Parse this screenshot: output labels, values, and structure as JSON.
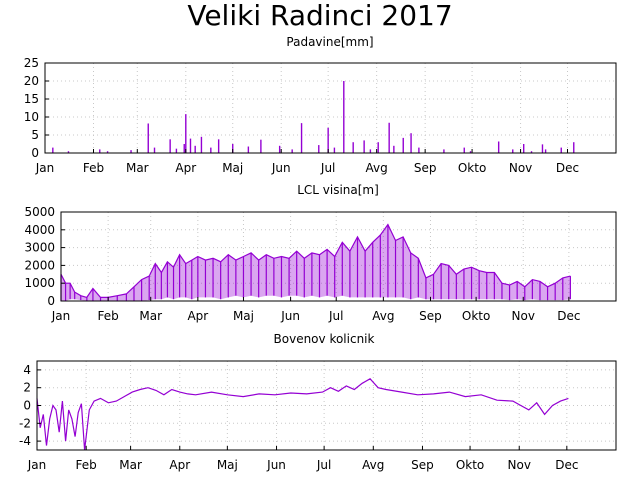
{
  "title": "Veliki Radinci 2017",
  "colors": {
    "series": "#9400d3",
    "grid": "#c8c8c8",
    "axis": "#000000"
  },
  "months_default": [
    "Jan",
    "Feb",
    "Mar",
    "Apr",
    "Maj",
    "Jun",
    "Jul",
    "Avg",
    "Sep",
    "Okto",
    "Nov",
    "Dec"
  ],
  "chart_data": [
    {
      "type": "bar",
      "title": "Padavine[mm]",
      "xlabel": "",
      "ylabel": "",
      "xlim": [
        0,
        365
      ],
      "ylim": [
        0,
        25
      ],
      "yticks": [
        0,
        5,
        10,
        15,
        20,
        25
      ],
      "xtick_days": [
        0,
        31,
        59,
        90,
        120,
        151,
        181,
        212,
        243,
        273,
        304,
        334
      ],
      "xtick_labels": [
        "Jan",
        "Feb",
        "Mar",
        "Apr",
        "Maj",
        "Jun",
        "Jul",
        "Avg",
        "Sep",
        "Okto",
        "Nov",
        "Dec"
      ],
      "grid": true,
      "series": [
        {
          "x": [
            5,
            15,
            35,
            40,
            55,
            66,
            70,
            80,
            84,
            89,
            90,
            93,
            96,
            100,
            106,
            111,
            120,
            130,
            138,
            150,
            158,
            164,
            175,
            181,
            185,
            191,
            197,
            204,
            208,
            213,
            220,
            223,
            229,
            234,
            239,
            255,
            268,
            272,
            290,
            299,
            306,
            311,
            318,
            320,
            330,
            338
          ],
          "values": [
            1.5,
            0.5,
            1.0,
            0.5,
            0.8,
            8.2,
            1.5,
            3.8,
            1.2,
            2.5,
            10.8,
            4.0,
            2.0,
            4.5,
            1.5,
            3.8,
            2.5,
            1.8,
            3.7,
            2.0,
            1.0,
            8.3,
            2.2,
            7.0,
            1.5,
            20.0,
            3.0,
            3.5,
            1.0,
            3.0,
            8.4,
            2.0,
            4.2,
            5.5,
            1.5,
            1.0,
            1.5,
            0.5,
            3.2,
            1.0,
            2.5,
            0.5,
            2.4,
            1.0,
            1.5,
            3.0
          ]
        }
      ]
    },
    {
      "type": "line",
      "title": "LCL visina[m]",
      "xlabel": "",
      "ylabel": "",
      "xlim": [
        0,
        365
      ],
      "ylim": [
        0,
        5000
      ],
      "yticks": [
        0,
        1000,
        2000,
        3000,
        4000,
        5000
      ],
      "xtick_days": [
        0,
        31,
        59,
        90,
        120,
        151,
        181,
        212,
        243,
        273,
        304,
        334
      ],
      "xtick_labels": [
        "Jan",
        "Feb",
        "Mar",
        "Apr",
        "Maj",
        "Jun",
        "Jul",
        "Avg",
        "Sep",
        "Okto",
        "Nov",
        "Dec"
      ],
      "grid": true,
      "series": [
        {
          "name": "",
          "x": [
            0,
            3,
            6,
            9,
            13,
            17,
            21,
            26,
            31,
            37,
            43,
            48,
            53,
            58,
            62,
            66,
            70,
            74,
            78,
            82,
            86,
            90,
            95,
            100,
            105,
            110,
            115,
            120,
            125,
            130,
            135,
            140,
            145,
            150,
            155,
            160,
            165,
            170,
            175,
            180,
            185,
            190,
            195,
            200,
            205,
            210,
            215,
            220,
            225,
            230,
            235,
            240,
            245,
            250,
            255,
            260,
            265,
            270,
            275,
            280,
            285,
            290,
            295,
            300,
            305,
            310,
            315,
            320,
            325,
            330,
            335
          ],
          "values": [
            1500,
            1000,
            1000,
            500,
            300,
            200,
            700,
            200,
            200,
            300,
            400,
            800,
            1200,
            1400,
            2100,
            1600,
            2200,
            1900,
            2600,
            2100,
            2300,
            2500,
            2300,
            2400,
            2200,
            2600,
            2300,
            2500,
            2700,
            2300,
            2600,
            2400,
            2500,
            2400,
            2800,
            2400,
            2700,
            2600,
            2900,
            2500,
            3300,
            2800,
            3600,
            2800,
            3300,
            3700,
            4300,
            3400,
            3600,
            2700,
            2400,
            1300,
            1500,
            2100,
            2000,
            1500,
            1800,
            1900,
            1700,
            1600,
            1600,
            1000,
            900,
            1100,
            800,
            1200,
            1100,
            800,
            1000,
            1300,
            1400
          ],
          "band_min": [
            0,
            0,
            100,
            100,
            50,
            0,
            0,
            0,
            0,
            0,
            0,
            0,
            0,
            50,
            100,
            100,
            200,
            100,
            200,
            200,
            100,
            200,
            200,
            200,
            100,
            200,
            300,
            200,
            300,
            200,
            300,
            300,
            200,
            300,
            300,
            200,
            300,
            200,
            300,
            200,
            300,
            200,
            200,
            200,
            200,
            200,
            200,
            200,
            200,
            100,
            200,
            100,
            100,
            100,
            100,
            100,
            100,
            100,
            100,
            100,
            100,
            100,
            50,
            100,
            50,
            100,
            50,
            50,
            50,
            50,
            100
          ]
        }
      ]
    },
    {
      "type": "line",
      "title": "Bovenov kolicnik",
      "xlabel": "",
      "ylabel": "",
      "xlim": [
        0,
        365
      ],
      "ylim": [
        -5,
        5
      ],
      "yticks": [
        -4,
        -2,
        0,
        2,
        4
      ],
      "xtick_days": [
        0,
        31,
        59,
        90,
        120,
        151,
        181,
        212,
        243,
        273,
        304,
        334
      ],
      "xtick_labels": [
        "Jan",
        "Feb",
        "Mar",
        "Apr",
        "Maj",
        "Jun",
        "Jul",
        "Avg",
        "Sep",
        "Okto",
        "Nov",
        "Dec"
      ],
      "grid": true,
      "series": [
        {
          "name": "",
          "x": [
            0,
            2,
            4,
            6,
            8,
            10,
            12,
            14,
            16,
            18,
            20,
            22,
            24,
            26,
            28,
            30,
            33,
            36,
            40,
            45,
            50,
            55,
            60,
            65,
            70,
            75,
            80,
            85,
            90,
            95,
            100,
            110,
            120,
            130,
            140,
            150,
            160,
            170,
            180,
            185,
            190,
            195,
            200,
            205,
            210,
            215,
            220,
            230,
            240,
            250,
            260,
            270,
            280,
            290,
            300,
            305,
            310,
            315,
            320,
            325,
            330,
            335
          ],
          "values": [
            0.8,
            -2.5,
            -1.0,
            -4.5,
            -1.5,
            0.0,
            -0.5,
            -3.0,
            0.5,
            -4.0,
            -0.5,
            -1.5,
            -3.5,
            -0.8,
            0.2,
            -5.0,
            -0.5,
            0.5,
            0.8,
            0.3,
            0.5,
            1.0,
            1.5,
            1.8,
            2.0,
            1.7,
            1.2,
            1.8,
            1.5,
            1.3,
            1.2,
            1.5,
            1.2,
            1.0,
            1.3,
            1.2,
            1.4,
            1.3,
            1.5,
            2.0,
            1.6,
            2.2,
            1.8,
            2.5,
            3.0,
            2.0,
            1.8,
            1.5,
            1.2,
            1.3,
            1.5,
            1.0,
            1.2,
            0.6,
            0.5,
            0.0,
            -0.5,
            0.3,
            -1.0,
            0.0,
            0.5,
            0.8
          ]
        }
      ]
    }
  ]
}
